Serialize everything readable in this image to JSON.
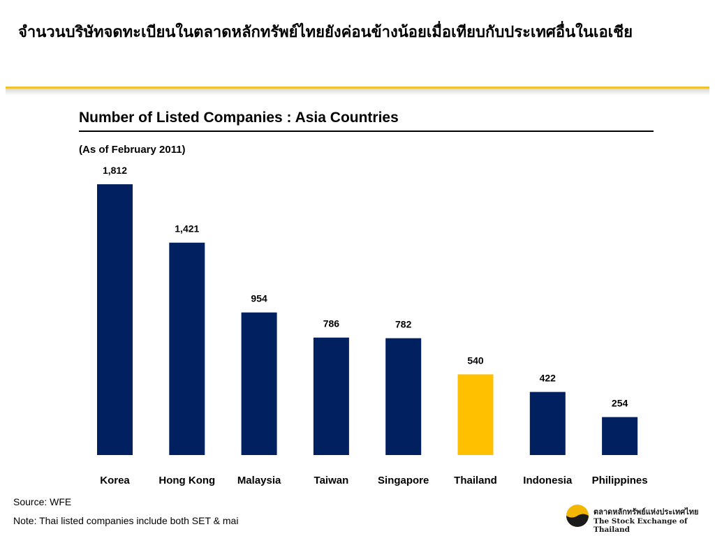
{
  "slide": {
    "title": "จำนวนบริษัทจดทะเบียนในตลาดหลักทรัพย์ไทยยังค่อนข้างน้อยเมื่อเทียบกับประเทศอื่นในเอเชีย"
  },
  "chart_data": {
    "type": "bar",
    "title": "Number of Listed Companies : Asia Countries",
    "subtitle": "(As of February 2011)",
    "xlabel": "",
    "ylabel": "",
    "categories": [
      "Korea",
      "Hong Kong",
      "Malaysia",
      "Taiwan",
      "Singapore",
      "Thailand",
      "Indonesia",
      "Philippines"
    ],
    "values": [
      1812,
      1421,
      954,
      786,
      782,
      540,
      422,
      254
    ],
    "value_labels": [
      "1,812",
      "1,421",
      "954",
      "786",
      "782",
      "540",
      "422",
      "254"
    ],
    "highlight_category": "Thailand",
    "colors": {
      "bar": "#002060",
      "highlight": "#ffc000"
    },
    "grid": false,
    "legend": "none"
  },
  "footer": {
    "source": "Source: WFE",
    "note": "Note: Thai listed companies include both SET & mai"
  },
  "logo": {
    "thai_text": "ตลาดหลักทรัพย์แห่งประเทศไทย",
    "english_text": "The Stock Exchange of Thailand",
    "colors": {
      "gold": "#f2b705",
      "dark": "#1a1a1a"
    }
  }
}
